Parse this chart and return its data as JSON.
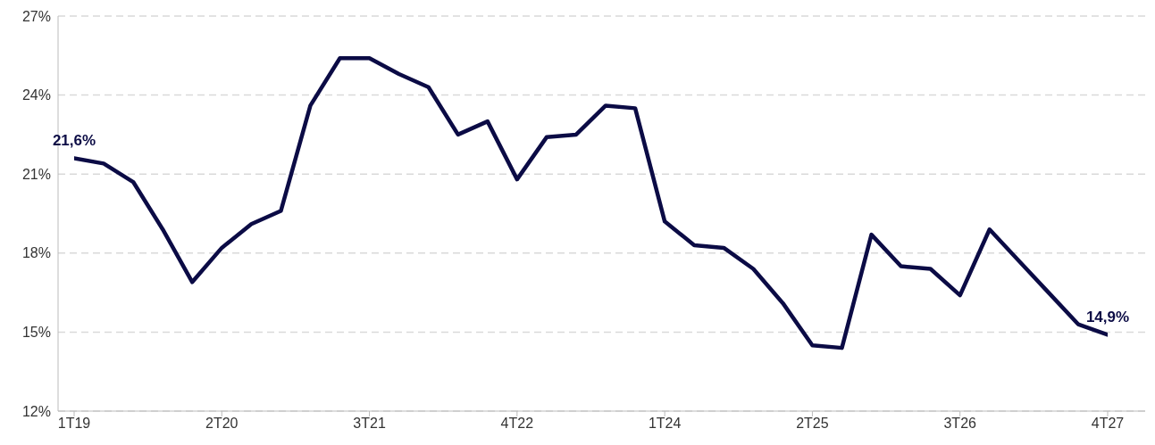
{
  "chart_data": {
    "type": "line",
    "categories": [
      "1T19",
      null,
      null,
      null,
      null,
      "2T20",
      null,
      null,
      null,
      null,
      "3T21",
      null,
      null,
      null,
      null,
      "4T22",
      null,
      null,
      null,
      null,
      "1T24",
      null,
      null,
      null,
      null,
      "2T25",
      null,
      null,
      null,
      null,
      "3T26",
      null,
      null,
      null,
      null,
      "4T27"
    ],
    "series": [
      {
        "color": "#0b0b45",
        "values": [
          21.6,
          21.4,
          20.7,
          18.9,
          16.9,
          18.2,
          19.1,
          19.6,
          23.6,
          25.4,
          25.4,
          24.8,
          24.3,
          22.5,
          23.0,
          20.8,
          22.4,
          22.5,
          23.6,
          23.5,
          19.2,
          18.3,
          18.2,
          17.4,
          16.1,
          14.5,
          14.4,
          18.7,
          17.5,
          17.4,
          16.4,
          18.9,
          17.7,
          16.5,
          15.3,
          14.9
        ],
        "value_labels": [
          "21,6%",
          null,
          null,
          null,
          null,
          null,
          null,
          null,
          null,
          null,
          null,
          null,
          null,
          null,
          null,
          null,
          null,
          null,
          null,
          null,
          null,
          null,
          null,
          null,
          null,
          null,
          null,
          null,
          null,
          null,
          null,
          null,
          null,
          null,
          null,
          "14,9%"
        ]
      }
    ],
    "ylim": [
      12,
      27
    ],
    "yticks": [
      {
        "value": 12,
        "label": "12%"
      },
      {
        "value": 15,
        "label": "15%"
      },
      {
        "value": 18,
        "label": "18%"
      },
      {
        "value": 21,
        "label": "21%"
      },
      {
        "value": 24,
        "label": "24%"
      },
      {
        "value": 27,
        "label": "27%"
      }
    ],
    "grid": "y",
    "legend": false,
    "marker": "none",
    "line_style": "solid"
  }
}
